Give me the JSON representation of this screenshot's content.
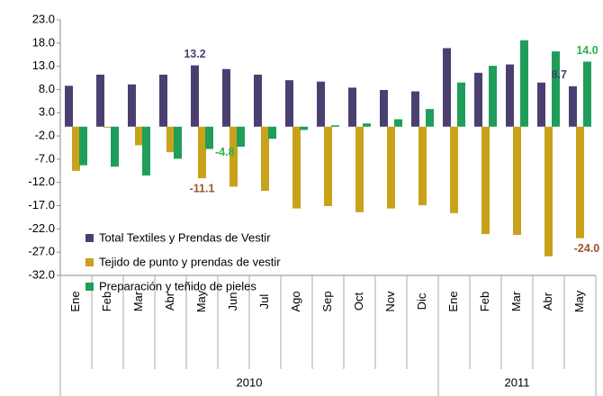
{
  "chart_data": {
    "type": "bar",
    "categories": [
      "Ene",
      "Feb",
      "Mar",
      "Abr",
      "May",
      "Jun",
      "Jul",
      "Ago",
      "Sep",
      "Oct",
      "Nov",
      "Dic",
      "Ene",
      "Feb",
      "Mar",
      "Abr",
      "May"
    ],
    "groups": [
      {
        "label": "2010",
        "count": 12
      },
      {
        "label": "2011",
        "count": 5
      }
    ],
    "series": [
      {
        "name": "Total Textiles y Prendas de Vestir",
        "color": "#4b3f72",
        "values": [
          8.8,
          11.2,
          9.1,
          11.2,
          13.2,
          12.4,
          11.2,
          10.0,
          9.7,
          8.4,
          7.9,
          7.6,
          16.9,
          11.6,
          13.4,
          9.5,
          8.7
        ],
        "value_labels": [
          null,
          null,
          null,
          null,
          "13.2",
          null,
          null,
          null,
          null,
          null,
          null,
          null,
          null,
          null,
          null,
          null,
          "8.7"
        ],
        "label_color": "#4b3f72"
      },
      {
        "name": "Tejido de punto y prendas de vestir",
        "color": "#c9a21c",
        "values": [
          -9.5,
          -0.2,
          -4.0,
          -5.5,
          -11.1,
          -12.9,
          -13.8,
          -17.6,
          -17.1,
          -18.4,
          -17.6,
          -16.9,
          -18.6,
          -23.1,
          -23.3,
          -27.9,
          -24.0
        ],
        "value_labels": [
          null,
          null,
          null,
          null,
          "-11.1",
          null,
          null,
          null,
          null,
          null,
          null,
          null,
          null,
          null,
          null,
          null,
          "-24.0"
        ],
        "label_color": "#a0522d"
      },
      {
        "name": "Preparación y teñido de pieles",
        "color": "#1f9e5a",
        "values": [
          -8.3,
          -8.6,
          -10.5,
          -6.9,
          -4.8,
          -4.3,
          -2.6,
          -0.7,
          0.3,
          0.7,
          1.6,
          3.8,
          9.5,
          13.1,
          18.6,
          16.2,
          14.0
        ],
        "value_labels": [
          null,
          null,
          null,
          null,
          "-4.8",
          null,
          null,
          null,
          null,
          null,
          null,
          null,
          null,
          null,
          null,
          null,
          "14.0"
        ],
        "label_color": "#2ab34a"
      }
    ],
    "ylim": [
      -32,
      23
    ],
    "yticks": [
      {
        "value": 23,
        "label": "23.0"
      },
      {
        "value": 18,
        "label": "18.0"
      },
      {
        "value": 13,
        "label": "13.0"
      },
      {
        "value": 8,
        "label": "8.0"
      },
      {
        "value": 3,
        "label": "3.0"
      },
      {
        "value": -2,
        "label": "-2.0"
      },
      {
        "value": -7,
        "label": "-7.0"
      },
      {
        "value": -12,
        "label": "-12.0"
      },
      {
        "value": -17,
        "label": "-17.0"
      },
      {
        "value": -22,
        "label": "-22.0"
      },
      {
        "value": -27,
        "label": "-27.0"
      },
      {
        "value": -32,
        "label": "-32.0"
      }
    ],
    "grid": false,
    "legend": "lower left"
  }
}
